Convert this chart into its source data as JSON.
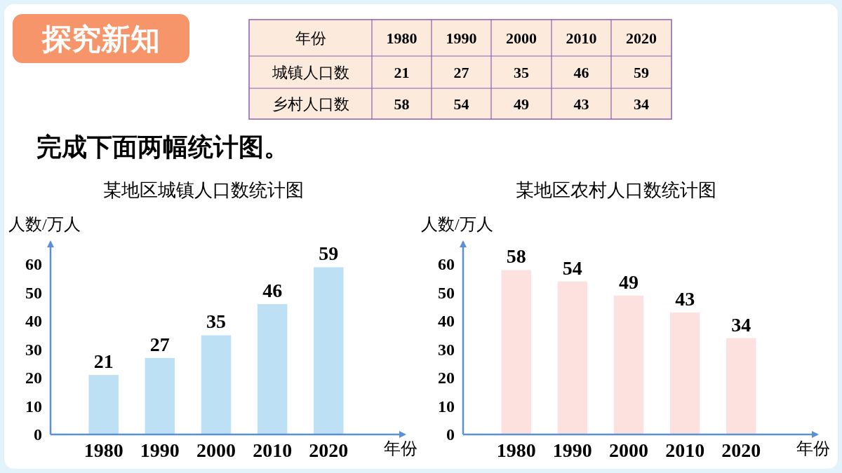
{
  "chart_data": [
    {
      "type": "heatmap",
      "title": "探究新知",
      "xlabel": "年份",
      "categories": [
        "1980",
        "1990",
        "2000",
        "2010",
        "2020"
      ],
      "y_categories": [
        "城镇人口数",
        "乡村人口数"
      ],
      "cells": [
        [
          21,
          27,
          35,
          46,
          59
        ],
        [
          58,
          54,
          49,
          43,
          34
        ]
      ],
      "color": "#fcebdc",
      "data_labels": true,
      "annotations": [
        "完成下面两幅统计图。"
      ]
    },
    {
      "type": "bar",
      "title": "某地区城镇人口数统计图",
      "xlabel": "年份",
      "ylabel": "人数/万人",
      "categories": [
        "1980",
        "1990",
        "2000",
        "2010",
        "2020"
      ],
      "values": [
        21,
        27,
        35,
        46,
        59
      ],
      "color": "#bde0f5",
      "ylim": [
        0,
        68
      ],
      "yticks": [
        0,
        10,
        20,
        30,
        40,
        50,
        60
      ],
      "data_labels": true
    },
    {
      "type": "bar",
      "title": "某地区农村人口数统计图",
      "xlabel": "年份",
      "ylabel": "人数/万人",
      "categories": [
        "1980",
        "1990",
        "2000",
        "2010",
        "2020"
      ],
      "values": [
        58,
        54,
        49,
        43,
        34
      ],
      "color": "#fde1de",
      "ylim": [
        0,
        68
      ],
      "yticks": [
        0,
        10,
        20,
        30,
        40,
        50,
        60
      ],
      "data_labels": true
    }
  ]
}
